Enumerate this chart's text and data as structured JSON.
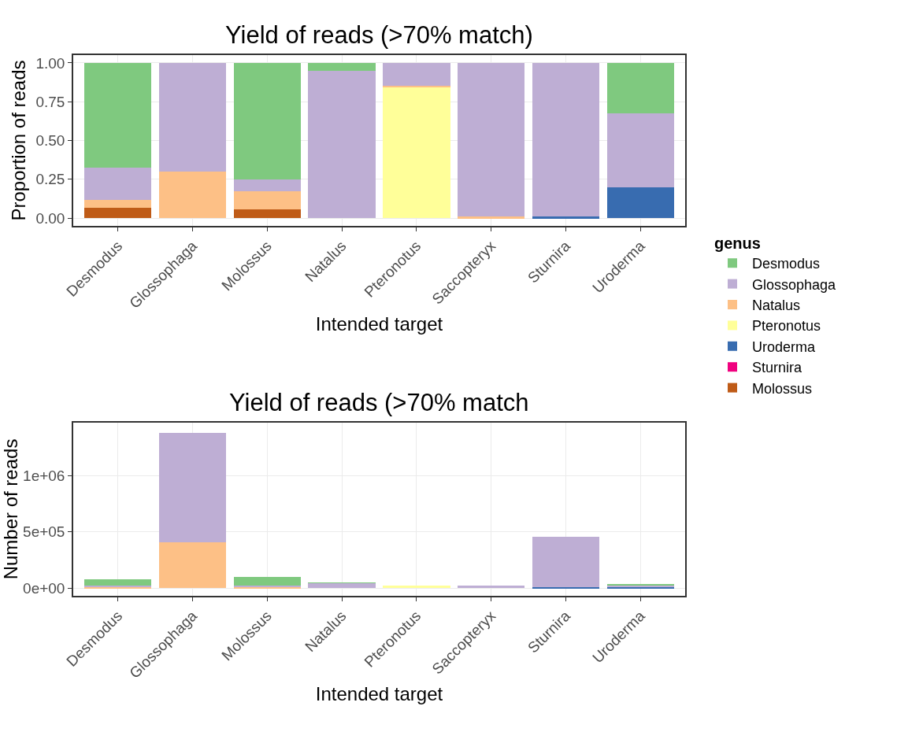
{
  "chart_data": [
    {
      "type": "bar",
      "title": "Yield of reads (>70% match)",
      "xlabel": "Intended target",
      "ylabel": "Proportion of reads",
      "legend_title": "genus",
      "stacked": true,
      "grid": true,
      "legend": "right",
      "categories": [
        "Desmodus",
        "Glossophaga",
        "Molossus",
        "Natalus",
        "Pteronotus",
        "Saccopteryx",
        "Sturnira",
        "Uroderma"
      ],
      "ylim": [
        -0.05,
        1.05
      ],
      "yticks": [
        {
          "value": 0,
          "label": "0.00"
        },
        {
          "value": 0.25,
          "label": "0.25"
        },
        {
          "value": 0.5,
          "label": "0.50"
        },
        {
          "value": 0.75,
          "label": "0.75"
        },
        {
          "value": 1,
          "label": "1.00"
        }
      ],
      "series": [
        {
          "name": "Molossus",
          "color": "#bf5b17",
          "values": [
            0.065,
            0,
            0.055,
            0,
            0,
            0,
            0,
            0
          ]
        },
        {
          "name": "Sturnira",
          "color": "#f0027f",
          "values": [
            0,
            0,
            0,
            0,
            0,
            0,
            0,
            0
          ]
        },
        {
          "name": "Uroderma",
          "color": "#386cb0",
          "values": [
            0,
            0,
            0,
            0,
            0,
            0,
            0.01,
            0.2
          ]
        },
        {
          "name": "Pteronotus",
          "color": "#ffff99",
          "values": [
            0,
            0,
            0,
            0,
            0.845,
            0,
            0,
            0
          ]
        },
        {
          "name": "Natalus",
          "color": "#fdc086",
          "values": [
            0.05,
            0.3,
            0.12,
            0,
            0.005,
            0.01,
            0,
            0
          ]
        },
        {
          "name": "Glossophaga",
          "color": "#beaed4",
          "values": [
            0.21,
            0.7,
            0.075,
            0.95,
            0.15,
            0.99,
            0.99,
            0.475
          ]
        },
        {
          "name": "Desmodus",
          "color": "#7fc97f",
          "values": [
            0.675,
            0,
            0.75,
            0.05,
            0,
            0,
            0,
            0.325
          ]
        }
      ]
    },
    {
      "type": "bar",
      "title": "Yield of reads (>70% match",
      "xlabel": "Intended target",
      "ylabel": "Number of reads",
      "stacked": true,
      "grid": true,
      "categories": [
        "Desmodus",
        "Glossophaga",
        "Molossus",
        "Natalus",
        "Pteronotus",
        "Saccopteryx",
        "Sturnira",
        "Uroderma"
      ],
      "ylim": [
        -70000,
        1475000
      ],
      "yticks": [
        {
          "value": 0,
          "label": "0e+00"
        },
        {
          "value": 500000,
          "label": "5e+05"
        },
        {
          "value": 1000000,
          "label": "1e+06"
        }
      ],
      "series": [
        {
          "color": "#bf5b17",
          "values": [
            null,
            0,
            null,
            0,
            0,
            0,
            0,
            0
          ]
        },
        {
          "color": "#f0027f",
          "values": [
            0,
            0,
            0,
            0,
            0,
            0,
            0,
            0
          ]
        },
        {
          "color": "#386cb0",
          "values": [
            0,
            0,
            0,
            0,
            0,
            0,
            4000,
            12000
          ]
        },
        {
          "color": "#ffff99",
          "values": [
            0,
            0,
            0,
            0,
            18000,
            0,
            0,
            0
          ]
        },
        {
          "color": "#fdc086",
          "values": [
            5000,
            405000,
            12000,
            0,
            0,
            0,
            0,
            0
          ]
        },
        {
          "color": "#beaed4",
          "values": [
            18000,
            977000,
            8000,
            47000,
            null,
            22000,
            451000,
            13000
          ]
        },
        {
          "color": "#7fc97f",
          "values": [
            57000,
            0,
            79000,
            2000,
            0,
            0,
            0,
            10000
          ]
        }
      ]
    }
  ]
}
